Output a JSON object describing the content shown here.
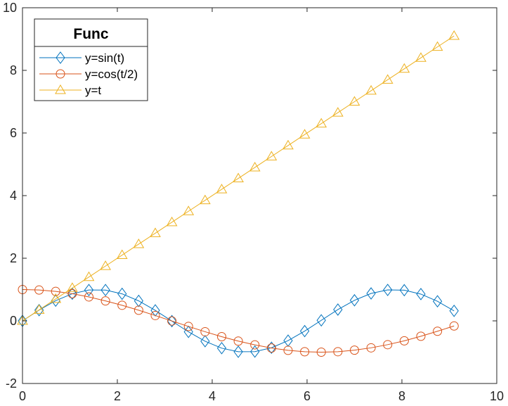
{
  "chart_data": {
    "type": "line",
    "title": "",
    "xlabel": "",
    "ylabel": "",
    "xlim": [
      0,
      10
    ],
    "ylim": [
      -2,
      10
    ],
    "xticks": [
      "0",
      "2",
      "4",
      "6",
      "8",
      "10"
    ],
    "yticks": [
      "-2",
      "0",
      "2",
      "4",
      "6",
      "8",
      "10"
    ],
    "grid": false,
    "legend": {
      "title": "Func",
      "location": "top-left"
    },
    "x": [
      0,
      0.35,
      0.7,
      1.05,
      1.4,
      1.75,
      2.1,
      2.45,
      2.8,
      3.15,
      3.5,
      3.85,
      4.2,
      4.55,
      4.9,
      5.25,
      5.6,
      5.95,
      6.3,
      6.65,
      7.0,
      7.35,
      7.7,
      8.05,
      8.4,
      8.75,
      9.1
    ],
    "series": [
      {
        "name": "y=sin(t)",
        "marker": "diamond",
        "color": "#0072BD",
        "values": [
          0,
          0.343,
          0.644,
          0.867,
          0.985,
          0.984,
          0.863,
          0.638,
          0.335,
          -0.008,
          -0.351,
          -0.651,
          -0.872,
          -0.987,
          -0.982,
          -0.859,
          -0.631,
          -0.327,
          0.017,
          0.36,
          0.657,
          0.876,
          0.988,
          0.98,
          0.855,
          0.625,
          0.319
        ]
      },
      {
        "name": "y=cos(t/2)",
        "marker": "circle",
        "color": "#D95319",
        "values": [
          1,
          0.985,
          0.94,
          0.867,
          0.765,
          0.638,
          0.498,
          0.34,
          0.17,
          -0.004,
          -0.178,
          -0.347,
          -0.505,
          -0.647,
          -0.766,
          -0.868,
          -0.942,
          -0.986,
          -1.0,
          -0.985,
          -0.936,
          -0.861,
          -0.76,
          -0.638,
          -0.491,
          -0.332,
          -0.163
        ]
      },
      {
        "name": "y=t",
        "marker": "triangle",
        "color": "#EDB120",
        "values": [
          0,
          0.35,
          0.7,
          1.05,
          1.4,
          1.75,
          2.1,
          2.45,
          2.8,
          3.15,
          3.5,
          3.85,
          4.2,
          4.55,
          4.9,
          5.25,
          5.6,
          5.95,
          6.3,
          6.65,
          7.0,
          7.35,
          7.7,
          8.05,
          8.4,
          8.75,
          9.1
        ]
      }
    ]
  }
}
